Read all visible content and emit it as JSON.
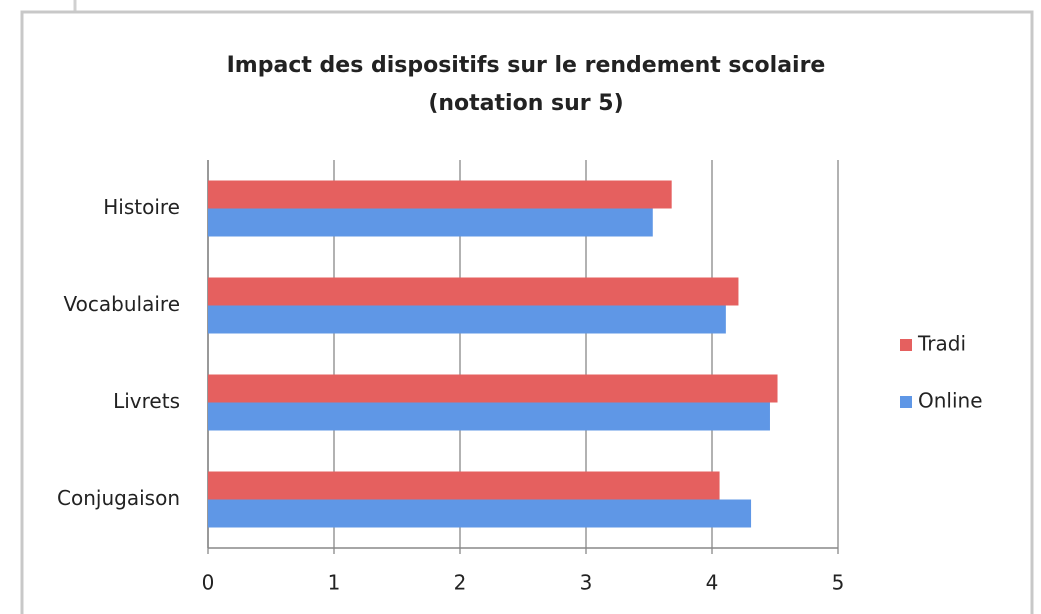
{
  "chart_data": {
    "type": "barh",
    "title": "Impact des dispositifs sur le rendement scolaire",
    "subtitle": "(notation sur 5)",
    "categories": [
      "Histoire",
      "Vocabulaire",
      "Livrets",
      "Conjugaison"
    ],
    "series": [
      {
        "name": "Tradi",
        "color": "#e5605f",
        "values": [
          3.68,
          4.21,
          4.52,
          4.06
        ]
      },
      {
        "name": "Online",
        "color": "#5f97e6",
        "values": [
          3.53,
          4.11,
          4.46,
          4.31
        ]
      }
    ],
    "xlim": [
      0,
      5
    ],
    "xticks": [
      0,
      1,
      2,
      3,
      4,
      5
    ],
    "grid": true,
    "legend": "right"
  }
}
